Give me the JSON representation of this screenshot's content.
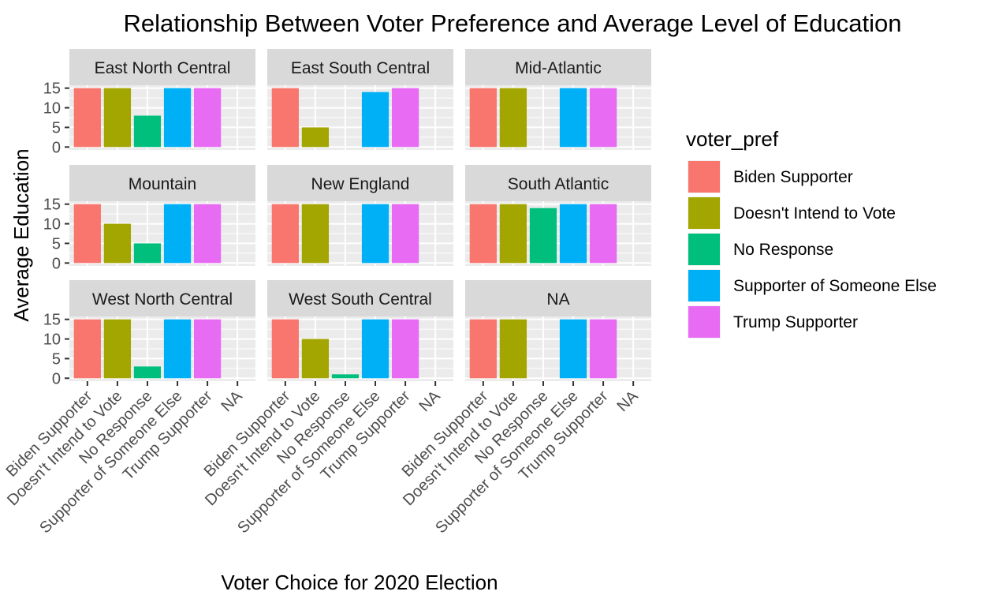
{
  "chart_data": {
    "type": "bar",
    "title": "Relationship Between Voter Preference and Average Level of Education",
    "xlabel": "Voter Choice for 2020 Election",
    "ylabel": "Average Education",
    "ylim": [
      0,
      15
    ],
    "yticks": [
      0,
      5,
      10,
      15
    ],
    "categories": [
      "Biden Supporter",
      "Doesn't Intend to Vote",
      "No Response",
      "Supporter of Someone Else",
      "Trump Supporter",
      "NA"
    ],
    "legend": {
      "title": "voter_pref",
      "position": "right",
      "entries": [
        {
          "label": "Biden Supporter",
          "color": "#F8766D"
        },
        {
          "label": "Doesn't Intend to Vote",
          "color": "#A3A500"
        },
        {
          "label": "No Response",
          "color": "#00BF7D"
        },
        {
          "label": "Supporter of Someone Else",
          "color": "#00B0F6"
        },
        {
          "label": "Trump Supporter",
          "color": "#E76BF3"
        }
      ]
    },
    "grid": true,
    "facets": [
      {
        "name": "East North Central",
        "values": [
          15,
          15,
          8,
          15,
          15,
          null
        ]
      },
      {
        "name": "East South Central",
        "values": [
          15,
          5,
          null,
          14,
          15,
          null
        ]
      },
      {
        "name": "Mid-Atlantic",
        "values": [
          15,
          15,
          null,
          15,
          15,
          null
        ]
      },
      {
        "name": "Mountain",
        "values": [
          15,
          10,
          5,
          15,
          15,
          null
        ]
      },
      {
        "name": "New England",
        "values": [
          15,
          15,
          null,
          15,
          15,
          null
        ]
      },
      {
        "name": "South Atlantic",
        "values": [
          15,
          15,
          14,
          15,
          15,
          null
        ]
      },
      {
        "name": "West North Central",
        "values": [
          15,
          15,
          3,
          15,
          15,
          null
        ]
      },
      {
        "name": "West South Central",
        "values": [
          15,
          10,
          1,
          15,
          15,
          null
        ]
      },
      {
        "name": "NA",
        "values": [
          15,
          15,
          null,
          15,
          15,
          null
        ]
      }
    ]
  }
}
